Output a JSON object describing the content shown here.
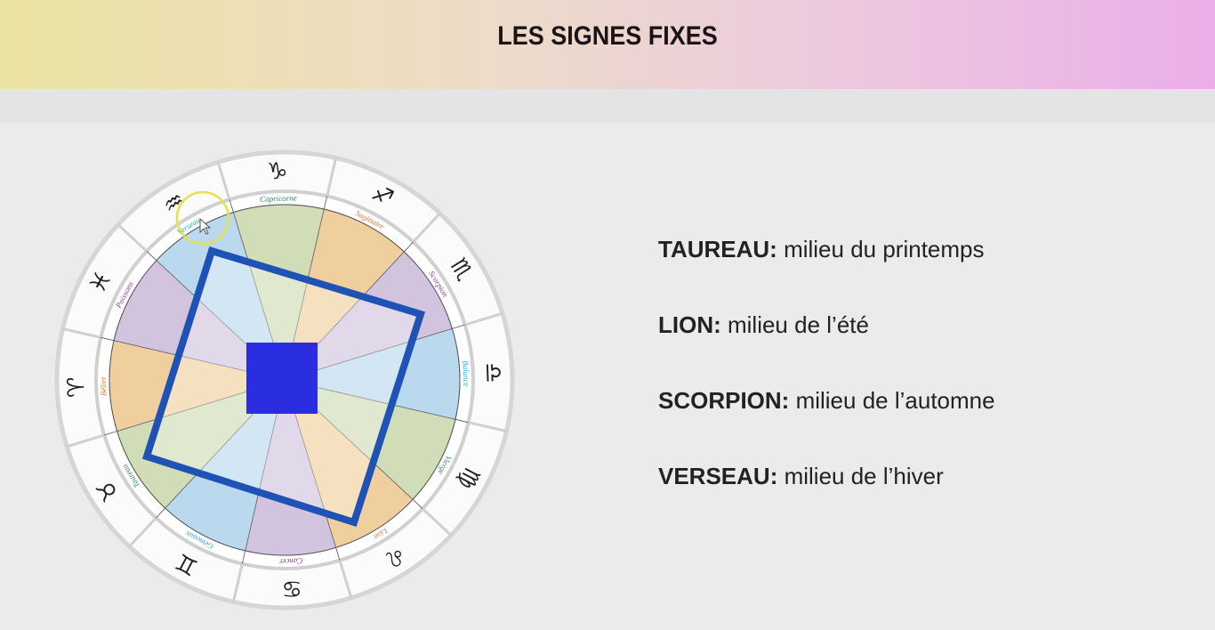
{
  "header": {
    "title": "LES SIGNES FIXES"
  },
  "colors": {
    "header_gradient": [
      "#ebe3a2",
      "#ecccdc",
      "#ebaee9"
    ],
    "fire": "#f0cf9e",
    "earth": "#d0ddb6",
    "air": "#bad9ef",
    "water": "#d2c3df",
    "fire_label": "#e2743a",
    "earth_label": "#2f8a5a",
    "air_label": "#2aa6d6",
    "water_label": "#8a3f8c",
    "square_outline": "#1f52b5",
    "center_square": "#2a2de0",
    "cursor_highlight": "#e6e04a"
  },
  "wheel": {
    "signs": [
      {
        "name": "Capricorne",
        "glyph": "♑",
        "element": "earth"
      },
      {
        "name": "Sagittaire",
        "glyph": "♐",
        "element": "fire"
      },
      {
        "name": "Scorpion",
        "glyph": "♏",
        "element": "water"
      },
      {
        "name": "Balance",
        "glyph": "♎",
        "element": "air"
      },
      {
        "name": "Vierge",
        "glyph": "♍",
        "element": "earth"
      },
      {
        "name": "Lion",
        "glyph": "♌",
        "element": "fire"
      },
      {
        "name": "Cancer",
        "glyph": "♋",
        "element": "water"
      },
      {
        "name": "Gémeaux",
        "glyph": "♊",
        "element": "air"
      },
      {
        "name": "Taureau",
        "glyph": "♉",
        "element": "earth"
      },
      {
        "name": "Bélier",
        "glyph": "♈",
        "element": "fire"
      },
      {
        "name": "Poissons",
        "glyph": "♓",
        "element": "water"
      },
      {
        "name": "Verseau",
        "glyph": "♒",
        "element": "air"
      }
    ]
  },
  "facts": [
    {
      "sign": "TAUREAU:",
      "text": " milieu du printemps"
    },
    {
      "sign": "LION:",
      "text": " milieu de l’été"
    },
    {
      "sign": "SCORPION:",
      "text": " milieu de l’automne"
    },
    {
      "sign": "VERSEAU:",
      "text": " milieu de l’hiver"
    }
  ]
}
